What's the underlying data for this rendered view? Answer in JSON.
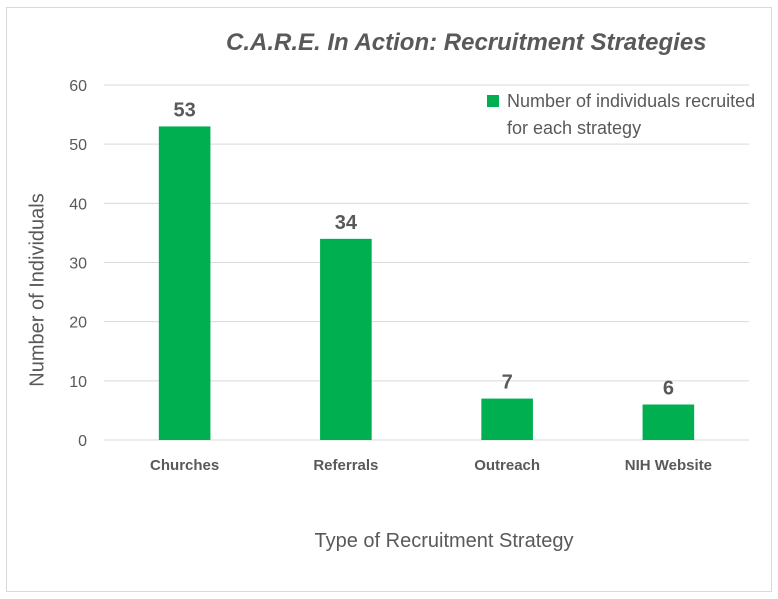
{
  "chart_data": {
    "type": "bar",
    "title": "C.A.R.E. In Action: Recruitment Strategies",
    "xlabel": "Type of Recruitment Strategy",
    "ylabel": "Number of Individuals",
    "categories": [
      "Churches",
      "Referrals",
      "Outreach",
      "NIH Website"
    ],
    "series": [
      {
        "name": "Number of individuals recruited for each strategy",
        "values": [
          53,
          34,
          7,
          6
        ],
        "color": "#00b050"
      }
    ],
    "data_labels": [
      "53",
      "34",
      "7",
      "6"
    ],
    "ylim": [
      0,
      60
    ],
    "yticks": [
      "0",
      "10",
      "20",
      "30",
      "40",
      "50",
      "60"
    ],
    "grid": true,
    "legend": "top-right"
  }
}
